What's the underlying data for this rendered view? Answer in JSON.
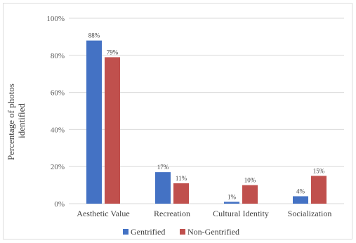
{
  "chart_data": {
    "type": "bar",
    "title": "",
    "xlabel": "",
    "ylabel": "Percentage of photos identified",
    "ylabel_lines": [
      "Percentage of photos",
      "identified"
    ],
    "ylim": [
      0,
      100
    ],
    "yticks": [
      0,
      20,
      40,
      60,
      80,
      100
    ],
    "ytick_labels": [
      "0%",
      "20%",
      "40%",
      "60%",
      "80%",
      "100%"
    ],
    "categories": [
      "Aesthetic Value",
      "Recreation",
      "Cultural Identity",
      "Socialization"
    ],
    "series": [
      {
        "name": "Gentrified",
        "color": "#4472c4",
        "values": [
          88,
          17,
          1,
          4
        ],
        "labels": [
          "88%",
          "17%",
          "1%",
          "4%"
        ]
      },
      {
        "name": "Non-Gentrified",
        "color": "#c0504d",
        "values": [
          79,
          11,
          10,
          15
        ],
        "labels": [
          "79%",
          "11%",
          "10%",
          "15%"
        ]
      }
    ],
    "grid": true,
    "legend_position": "bottom"
  }
}
